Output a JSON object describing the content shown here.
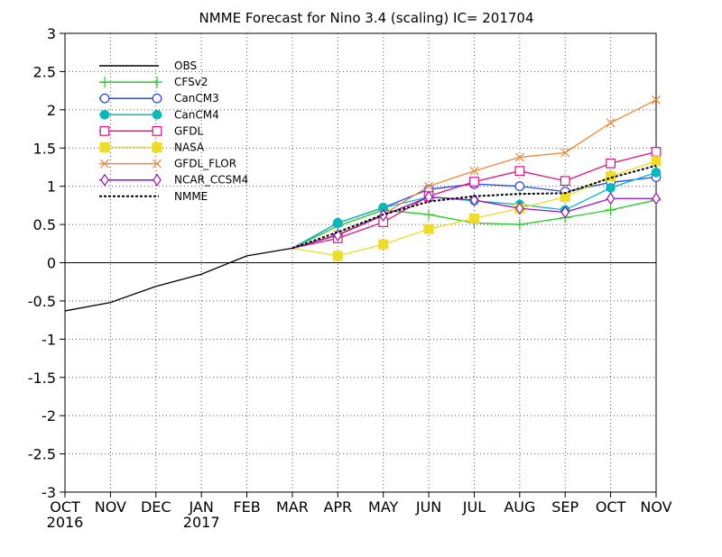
{
  "chart_data": {
    "type": "line",
    "title": "NMME Forecast for Nino 3.4 (scaling) IC= 201704",
    "x_categories": [
      "OCT",
      "NOV",
      "DEC",
      "JAN",
      "FEB",
      "MAR",
      "APR",
      "MAY",
      "JUN",
      "JUL",
      "AUG",
      "SEP",
      "OCT",
      "NOV"
    ],
    "x_year_labels": [
      {
        "index": 0,
        "label": "2016"
      },
      {
        "index": 3,
        "label": "2017"
      }
    ],
    "ylim": [
      -3,
      3
    ],
    "yticks": [
      -3,
      -2.5,
      -2,
      -1.5,
      -1,
      -0.5,
      0,
      0.5,
      1,
      1.5,
      2,
      2.5,
      3
    ],
    "grid": true,
    "zero_line": true,
    "legend_position": "top-left",
    "series": [
      {
        "name": "OBS",
        "color": "#000000",
        "marker": "none",
        "dash": false,
        "start_index": 0,
        "values": [
          -0.63,
          -0.52,
          -0.31,
          -0.15,
          0.09,
          0.19
        ]
      },
      {
        "name": "CFSv2",
        "color": "#22cc22",
        "marker": "plus",
        "dash": false,
        "start_index": 5,
        "values": [
          0.19,
          0.48,
          0.69,
          0.63,
          0.52,
          0.5,
          0.59,
          0.69,
          0.82
        ]
      },
      {
        "name": "CanCM3",
        "color": "#2244ee",
        "marker": "open-circle",
        "dash": false,
        "start_index": 5,
        "values": [
          0.19,
          0.52,
          0.72,
          0.96,
          1.03,
          1.0,
          0.93,
          1.05,
          1.12
        ]
      },
      {
        "name": "CanCM4",
        "color": "#00bbbb",
        "marker": "filled-circle",
        "dash": false,
        "start_index": 5,
        "values": [
          0.19,
          0.52,
          0.72,
          0.86,
          0.81,
          0.76,
          0.69,
          0.98,
          1.18
        ]
      },
      {
        "name": "GFDL",
        "color": "#dd1188",
        "marker": "open-square",
        "dash": false,
        "start_index": 5,
        "values": [
          0.19,
          0.32,
          0.53,
          0.87,
          1.06,
          1.2,
          1.07,
          1.3,
          1.45
        ]
      },
      {
        "name": "NASA",
        "color": "#eedd22",
        "marker": "filled-square",
        "dash": false,
        "start_index": 5,
        "values": [
          0.19,
          0.09,
          0.24,
          0.44,
          0.58,
          0.71,
          0.86,
          1.13,
          1.33
        ]
      },
      {
        "name": "GFDL_FLOR",
        "color": "#ee8833",
        "marker": "x",
        "dash": false,
        "start_index": 5,
        "values": [
          0.19,
          0.37,
          0.63,
          1.0,
          1.2,
          1.38,
          1.44,
          1.83,
          2.13
        ]
      },
      {
        "name": "NCAR_CCSM4",
        "color": "#9911bb",
        "marker": "diamond",
        "dash": false,
        "start_index": 5,
        "values": [
          0.19,
          0.36,
          0.62,
          0.86,
          0.82,
          0.71,
          0.66,
          0.84,
          0.84
        ]
      },
      {
        "name": "NMME",
        "color": "#000000",
        "marker": "none",
        "dash": true,
        "start_index": 5,
        "values": [
          0.19,
          0.4,
          0.63,
          0.8,
          0.87,
          0.9,
          0.91,
          1.11,
          1.27
        ]
      }
    ]
  }
}
